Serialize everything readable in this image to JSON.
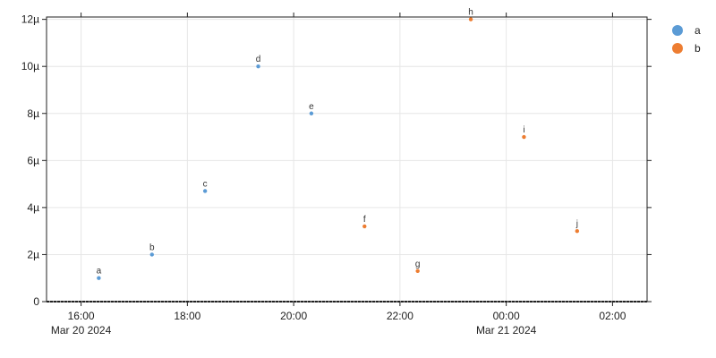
{
  "chart_data": {
    "type": "scatter",
    "title": "",
    "xlabel": "",
    "ylabel": "",
    "grid": true,
    "legend_position": "right",
    "x_range": [
      "2024-03-20 15:21",
      "2024-03-21 02:39"
    ],
    "ylim": [
      0,
      1.21e-05
    ],
    "y_ticks": [
      {
        "value": 0,
        "label": "0"
      },
      {
        "value": 2e-06,
        "label": "2µ"
      },
      {
        "value": 4e-06,
        "label": "4µ"
      },
      {
        "value": 6e-06,
        "label": "6µ"
      },
      {
        "value": 8e-06,
        "label": "8µ"
      },
      {
        "value": 1e-05,
        "label": "10µ"
      },
      {
        "value": 1.2e-05,
        "label": "12µ"
      }
    ],
    "x_ticks": [
      {
        "value": "2024-03-20 16:00",
        "label": "16:00",
        "sublabel": "Mar 20 2024"
      },
      {
        "value": "2024-03-20 18:00",
        "label": "18:00",
        "sublabel": ""
      },
      {
        "value": "2024-03-20 20:00",
        "label": "20:00",
        "sublabel": ""
      },
      {
        "value": "2024-03-20 22:00",
        "label": "22:00",
        "sublabel": ""
      },
      {
        "value": "2024-03-21 00:00",
        "label": "00:00",
        "sublabel": "Mar 21 2024"
      },
      {
        "value": "2024-03-21 02:00",
        "label": "02:00",
        "sublabel": ""
      }
    ],
    "series": [
      {
        "name": "a",
        "color": "#5b9bd5",
        "points": [
          {
            "x": "2024-03-20 16:20",
            "y": 1e-06,
            "label": "a"
          },
          {
            "x": "2024-03-20 17:20",
            "y": 2e-06,
            "label": "b"
          },
          {
            "x": "2024-03-20 18:20",
            "y": 4.7e-06,
            "label": "c"
          },
          {
            "x": "2024-03-20 19:20",
            "y": 1e-05,
            "label": "d"
          },
          {
            "x": "2024-03-20 20:20",
            "y": 8e-06,
            "label": "e"
          }
        ]
      },
      {
        "name": "b",
        "color": "#ed7d31",
        "points": [
          {
            "x": "2024-03-20 21:20",
            "y": 3.2e-06,
            "label": "f"
          },
          {
            "x": "2024-03-20 22:20",
            "y": 1.3e-06,
            "label": "g"
          },
          {
            "x": "2024-03-20 23:20",
            "y": 1.2e-05,
            "label": "h"
          },
          {
            "x": "2024-03-21 00:20",
            "y": 7e-06,
            "label": "i"
          },
          {
            "x": "2024-03-21 01:20",
            "y": 3e-06,
            "label": "j"
          }
        ]
      }
    ]
  }
}
